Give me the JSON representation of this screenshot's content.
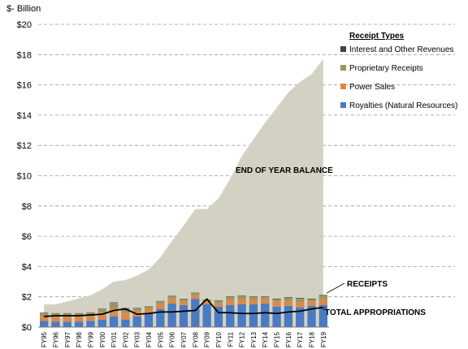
{
  "chart_data": {
    "type": "area+stacked-bar+line",
    "unit_label": "$- Billion",
    "categories": [
      "FY95",
      "FY96",
      "FY97",
      "FY98",
      "FY99",
      "FY00",
      "FY01",
      "FY02",
      "FY03",
      "FY04",
      "FY05",
      "FY06",
      "FY07",
      "FY08",
      "FY09",
      "FY10",
      "FY11",
      "FY12",
      "FY13",
      "FY14",
      "FY15",
      "FY16",
      "FY17",
      "FY18",
      "FY19"
    ],
    "ylim": [
      0,
      20
    ],
    "y_ticks": [
      "$0",
      "$2",
      "$4",
      "$6",
      "$8",
      "$10",
      "$12",
      "$14",
      "$16",
      "$18",
      "$20"
    ],
    "y_tick_values": [
      0,
      2,
      4,
      6,
      8,
      10,
      12,
      14,
      16,
      18,
      20
    ],
    "grid": "horizontal-dashed",
    "legend": {
      "title": "Receipt Types",
      "placement": "right",
      "items": [
        {
          "label": "Interest and Other Revenues",
          "color": "#404040"
        },
        {
          "label": "Proprietary Receipts",
          "color": "#9c9561"
        },
        {
          "label": "Power Sales",
          "color": "#d9894a"
        },
        {
          "label": "Royalties (Natural Resources)",
          "color": "#4a7bc2"
        }
      ]
    },
    "area": {
      "label": "END OF YEAR BALANCE",
      "color": "#d2d1c4",
      "values": [
        1.5,
        1.5,
        1.7,
        1.9,
        2.1,
        2.5,
        3.0,
        3.1,
        3.4,
        3.8,
        4.6,
        5.7,
        6.7,
        7.8,
        7.8,
        8.5,
        9.8,
        11.3,
        12.4,
        13.5,
        14.5,
        15.5,
        16.2,
        16.7,
        17.7
      ]
    },
    "bar_series": [
      {
        "name": "Royalties (Natural Resources)",
        "color": "#4a7bc2",
        "values": [
          0.4,
          0.35,
          0.35,
          0.35,
          0.4,
          0.5,
          0.7,
          0.5,
          0.7,
          0.9,
          1.2,
          1.55,
          1.45,
          1.85,
          1.5,
          1.35,
          1.45,
          1.5,
          1.5,
          1.55,
          1.35,
          1.4,
          1.3,
          1.4,
          1.45
        ]
      },
      {
        "name": "Power Sales",
        "color": "#d9894a",
        "values": [
          0.35,
          0.35,
          0.35,
          0.35,
          0.35,
          0.45,
          0.5,
          0.45,
          0.4,
          0.3,
          0.35,
          0.35,
          0.25,
          0.25,
          0.2,
          0.25,
          0.35,
          0.35,
          0.35,
          0.35,
          0.35,
          0.35,
          0.35,
          0.3,
          0.4
        ]
      },
      {
        "name": "Proprietary Receipts",
        "color": "#9c9561",
        "values": [
          0.2,
          0.2,
          0.2,
          0.2,
          0.2,
          0.25,
          0.4,
          0.3,
          0.15,
          0.15,
          0.15,
          0.15,
          0.15,
          0.15,
          0.1,
          0.15,
          0.2,
          0.2,
          0.15,
          0.1,
          0.15,
          0.2,
          0.25,
          0.15,
          0.25
        ]
      },
      {
        "name": "Interest and Other Revenues",
        "color": "#404040",
        "values": [
          0.02,
          0.02,
          0.02,
          0.02,
          0.02,
          0.02,
          0.03,
          0.02,
          0.02,
          0.02,
          0.02,
          0.02,
          0.02,
          0.02,
          0.02,
          0.02,
          0.03,
          0.03,
          0.03,
          0.03,
          0.03,
          0.03,
          0.03,
          0.03,
          0.03
        ]
      }
    ],
    "line": {
      "label": "TOTAL APPROPRIATIONS",
      "color": "#000000",
      "values": [
        0.7,
        0.75,
        0.75,
        0.75,
        0.8,
        0.85,
        1.1,
        1.2,
        0.85,
        0.9,
        1.0,
        1.0,
        1.05,
        1.1,
        1.85,
        0.95,
        0.95,
        0.9,
        0.9,
        0.95,
        0.9,
        1.0,
        1.05,
        1.2,
        1.3
      ]
    },
    "annotations": {
      "balance": "END OF YEAR BALANCE",
      "receipts": "RECEIPTS",
      "appropriations": "TOTAL APPROPRIATIONS"
    }
  }
}
